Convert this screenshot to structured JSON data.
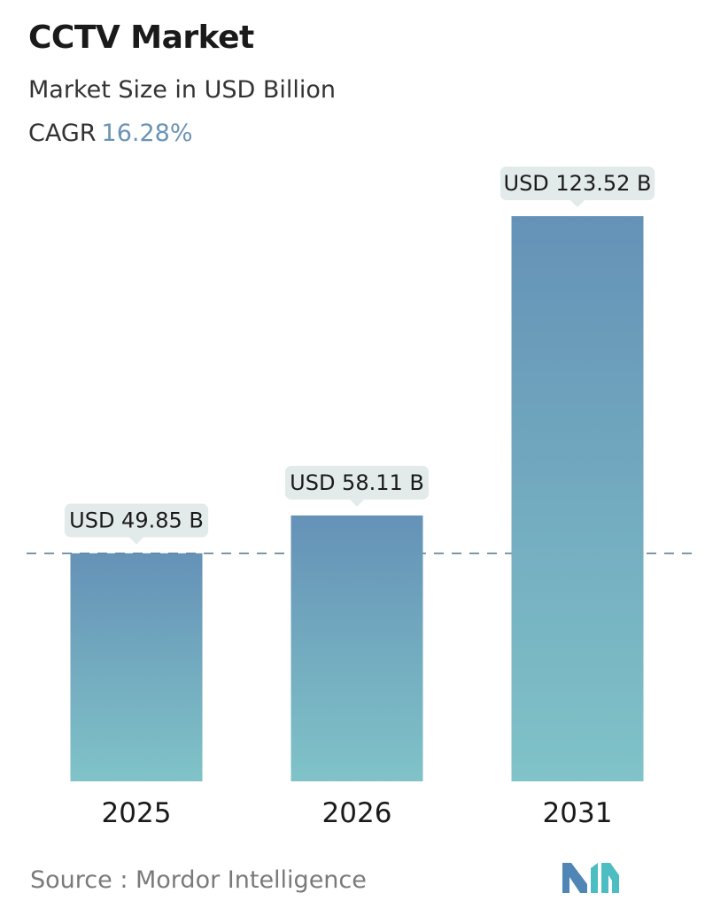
{
  "header": {
    "title": "CCTV Market",
    "subtitle": "Market Size in USD Billion",
    "cagr_label": "CAGR",
    "cagr_value": "16.28%"
  },
  "chart_data": {
    "type": "bar",
    "categories": [
      "2025",
      "2026",
      "2031"
    ],
    "values": [
      49.85,
      58.11,
      123.52
    ],
    "data_labels": [
      "USD 49.85 B",
      "USD 58.11 B",
      "USD 123.52 B"
    ],
    "title": "CCTV Market",
    "subtitle": "Market Size in USD Billion",
    "xlabel": "",
    "ylabel": "",
    "ylim": [
      0,
      123.52
    ],
    "grid": false,
    "reference_line": {
      "value": 49.85,
      "style": "dashed"
    }
  },
  "colors": {
    "bar_top": "#6592b7",
    "bar_bottom": "#80c3c8",
    "label_bg": "#e3ebea",
    "dashed_line": "#5d7f96",
    "cagr_value": "#6a93b5",
    "logo_left": "#4f86b6",
    "logo_right": "#4cbdc2"
  },
  "footer": {
    "source": "Source :  Mordor Intelligence"
  },
  "logo": {
    "icon": "mordor-intelligence-logo-icon"
  }
}
